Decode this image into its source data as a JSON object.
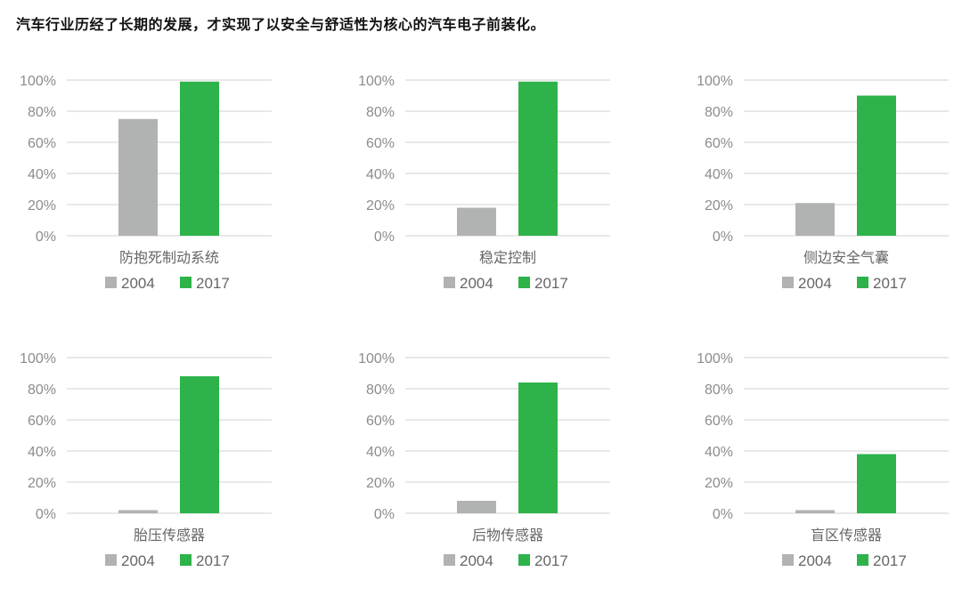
{
  "title": "汽车行业历经了长期的发展，才实现了以安全与舒适性为核心的汽车电子前装化。",
  "colors": {
    "2004": "#b1b3b2",
    "2017": "#2db34a",
    "grid": "#d9d9d9",
    "tick_text": "#8c8c8c",
    "label_text": "#666666"
  },
  "chart_data": [
    {
      "type": "bar",
      "category": "防抱死制动系统",
      "categories": [
        "2004",
        "2017"
      ],
      "values": [
        75,
        99
      ],
      "yticks": [
        "0%",
        "20%",
        "40%",
        "60%",
        "80%",
        "100%"
      ],
      "ylim": [
        0,
        100
      ],
      "grid": true,
      "legend": [
        "2004",
        "2017"
      ],
      "legend_position": "bottom"
    },
    {
      "type": "bar",
      "category": "稳定控制",
      "categories": [
        "2004",
        "2017"
      ],
      "values": [
        18,
        99
      ],
      "yticks": [
        "0%",
        "20%",
        "40%",
        "60%",
        "80%",
        "100%"
      ],
      "ylim": [
        0,
        100
      ],
      "grid": true,
      "legend": [
        "2004",
        "2017"
      ],
      "legend_position": "bottom"
    },
    {
      "type": "bar",
      "category": "侧边安全气囊",
      "categories": [
        "2004",
        "2017"
      ],
      "values": [
        21,
        90
      ],
      "yticks": [
        "0%",
        "20%",
        "40%",
        "60%",
        "80%",
        "100%"
      ],
      "ylim": [
        0,
        100
      ],
      "grid": true,
      "legend": [
        "2004",
        "2017"
      ],
      "legend_position": "bottom"
    },
    {
      "type": "bar",
      "category": "胎压传感器",
      "categories": [
        "2004",
        "2017"
      ],
      "values": [
        2,
        88
      ],
      "yticks": [
        "0%",
        "20%",
        "40%",
        "60%",
        "80%",
        "100%"
      ],
      "ylim": [
        0,
        100
      ],
      "grid": true,
      "legend": [
        "2004",
        "2017"
      ],
      "legend_position": "bottom"
    },
    {
      "type": "bar",
      "category": "后物传感器",
      "categories": [
        "2004",
        "2017"
      ],
      "values": [
        8,
        84
      ],
      "yticks": [
        "0%",
        "20%",
        "40%",
        "60%",
        "80%",
        "100%"
      ],
      "ylim": [
        0,
        100
      ],
      "grid": true,
      "legend": [
        "2004",
        "2017"
      ],
      "legend_position": "bottom"
    },
    {
      "type": "bar",
      "category": "盲区传感器",
      "categories": [
        "2004",
        "2017"
      ],
      "values": [
        2,
        38
      ],
      "yticks": [
        "0%",
        "20%",
        "40%",
        "60%",
        "80%",
        "100%"
      ],
      "ylim": [
        0,
        100
      ],
      "grid": true,
      "legend": [
        "2004",
        "2017"
      ],
      "legend_position": "bottom"
    }
  ]
}
